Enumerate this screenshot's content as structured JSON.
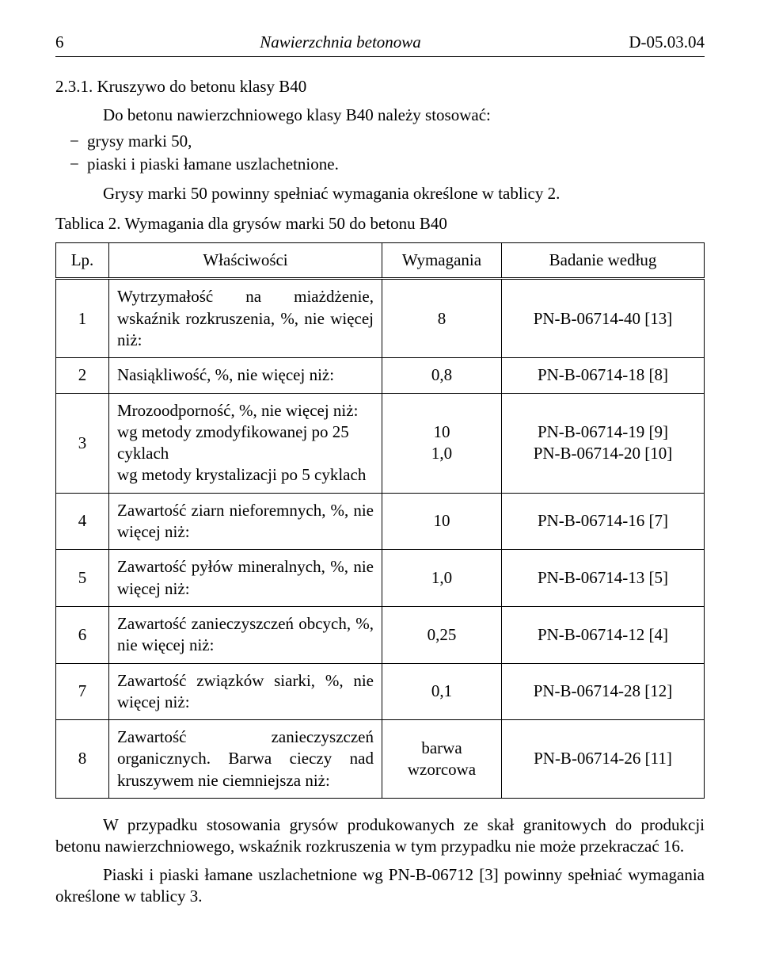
{
  "header": {
    "page_number": "6",
    "title": "Nawierzchnia betonowa",
    "code": "D-05.03.04"
  },
  "section": {
    "number_title": "2.3.1. Kruszywo do betonu klasy B40",
    "intro": "Do betonu nawierzchniowego klasy B40 należy stosować:",
    "bullet1": "grysy marki 50,",
    "bullet2": "piaski i piaski łamane uszlachetnione.",
    "after": "Grysy marki 50 powinny spełniać wymagania określone w tablicy 2."
  },
  "table": {
    "caption": "Tablica 2. Wymagania dla grysów marki 50 do betonu B40",
    "head": {
      "lp": "Lp.",
      "prop": "Właściwości",
      "req": "Wymagania",
      "test": "Badanie według"
    },
    "rows": [
      {
        "lp": "1",
        "prop": "Wytrzymałość na miażdżenie, wskaźnik rozkruszenia, %, nie więcej niż:",
        "req": "8",
        "test": "PN-B-06714-40 [13]"
      },
      {
        "lp": "2",
        "prop": "Nasiąkliwość, %, nie więcej niż:",
        "req": "0,8",
        "test": "PN-B-06714-18 [8]"
      },
      {
        "lp": "3",
        "prop": "Mrozoodporność, %, nie więcej niż:\nwg metody zmodyfikowanej po 25 cyklach\nwg metody krystalizacji po 5 cyklach",
        "req": "10\n1,0",
        "test": "PN-B-06714-19 [9]\nPN-B-06714-20 [10]"
      },
      {
        "lp": "4",
        "prop": "Zawartość ziarn nieforemnych, %, nie więcej niż:",
        "req": "10",
        "test": "PN-B-06714-16 [7]"
      },
      {
        "lp": "5",
        "prop": "Zawartość pyłów mineralnych, %, nie więcej niż:",
        "req": "1,0",
        "test": "PN-B-06714-13 [5]"
      },
      {
        "lp": "6",
        "prop": "Zawartość zanieczyszczeń obcych, %, nie więcej niż:",
        "req": "0,25",
        "test": "PN-B-06714-12 [4]"
      },
      {
        "lp": "7",
        "prop": "Zawartość związków siarki, %, nie więcej niż:",
        "req": "0,1",
        "test": "PN-B-06714-28 [12]"
      },
      {
        "lp": "8",
        "prop": "Zawartość zanieczyszczeń organicznych. Barwa cieczy nad kruszywem nie ciemniejsza niż:",
        "req": "barwa\nwzorcowa",
        "test": "PN-B-06714-26 [11]"
      }
    ]
  },
  "footer": {
    "p1": "W przypadku stosowania grysów produkowanych ze skał granitowych do produkcji betonu nawierzchniowego, wskaźnik rozkruszenia w tym przypadku nie może przekraczać 16.",
    "p2": "Piaski i piaski łamane uszlachetnione wg PN-B-06712 [3] powinny spełniać wymagania określone w tablicy 3."
  }
}
